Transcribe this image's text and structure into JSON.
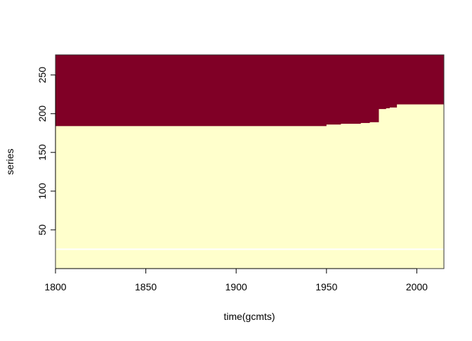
{
  "chart_data": {
    "type": "heatmap",
    "title": "",
    "xlabel": "time(gcmts)",
    "ylabel": "series",
    "xlim": [
      1800,
      2015
    ],
    "ylim": [
      0,
      276
    ],
    "x_ticks": [
      1800,
      1850,
      1900,
      1950,
      2000
    ],
    "y_ticks": [
      50,
      100,
      150,
      200,
      250
    ],
    "colors": {
      "low": "#FFFFCC",
      "high": "#800026",
      "gap_line": "#FFFFFF"
    },
    "boundary_steps": [
      {
        "from": 1800,
        "to": 1950,
        "series": 184
      },
      {
        "from": 1950,
        "to": 1958,
        "series": 186
      },
      {
        "from": 1958,
        "to": 1969,
        "series": 187
      },
      {
        "from": 1969,
        "to": 1974,
        "series": 188
      },
      {
        "from": 1974,
        "to": 1979,
        "series": 189
      },
      {
        "from": 1979,
        "to": 1983,
        "series": 206
      },
      {
        "from": 1983,
        "to": 1985,
        "series": 207
      },
      {
        "from": 1985,
        "to": 1989,
        "series": 208
      },
      {
        "from": 1989,
        "to": 2015,
        "series": 212
      }
    ],
    "gap_series": 25,
    "legend": "none",
    "grid": false
  }
}
